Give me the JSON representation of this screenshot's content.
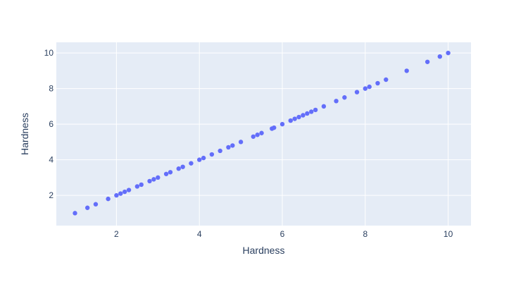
{
  "chart_data": {
    "type": "scatter",
    "xlabel": "Hardness",
    "ylabel": "Hardness",
    "xlim": [
      0.55,
      10.55
    ],
    "ylim": [
      0.3,
      10.6
    ],
    "xticks": [
      2,
      4,
      6,
      8,
      10
    ],
    "yticks": [
      2,
      4,
      6,
      8,
      10
    ],
    "grid": true,
    "colors": {
      "plot_bg": "#e5ecf6",
      "grid": "#ffffff",
      "marker": "#636efa",
      "text": "#2a3f5f"
    },
    "series": [
      {
        "x": [
          1.0,
          1.3,
          1.5,
          1.8,
          2.0,
          2.1,
          2.2,
          2.3,
          2.5,
          2.6,
          2.8,
          2.9,
          3.0,
          3.2,
          3.3,
          3.5,
          3.6,
          3.8,
          4.0,
          4.1,
          4.3,
          4.5,
          4.7,
          4.8,
          5.0,
          5.3,
          5.4,
          5.5,
          5.75,
          5.8,
          6.0,
          6.2,
          6.3,
          6.4,
          6.5,
          6.6,
          6.7,
          6.8,
          7.0,
          7.3,
          7.5,
          7.8,
          8.0,
          8.1,
          8.3,
          8.5,
          9.0,
          9.5,
          9.8,
          10.0
        ],
        "y": [
          1.0,
          1.3,
          1.5,
          1.8,
          2.0,
          2.1,
          2.2,
          2.3,
          2.5,
          2.6,
          2.8,
          2.9,
          3.0,
          3.2,
          3.3,
          3.5,
          3.6,
          3.8,
          4.0,
          4.1,
          4.3,
          4.5,
          4.7,
          4.8,
          5.0,
          5.3,
          5.4,
          5.5,
          5.75,
          5.8,
          6.0,
          6.2,
          6.3,
          6.4,
          6.5,
          6.6,
          6.7,
          6.8,
          7.0,
          7.3,
          7.5,
          7.8,
          8.0,
          8.1,
          8.3,
          8.5,
          9.0,
          9.5,
          9.8,
          10.0
        ]
      }
    ]
  }
}
